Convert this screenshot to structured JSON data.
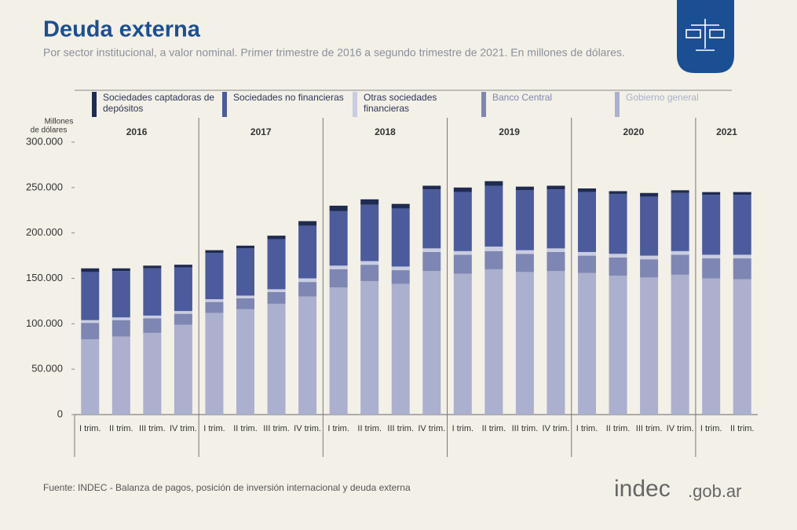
{
  "chart_data": {
    "type": "stacked_bar",
    "title": "Deuda externa",
    "subtitle": "Por sector institucional, a valor nominal. Primer trimestre de 2016 a segundo trimestre de 2021. En millones de dólares.",
    "y_label": [
      "Millones",
      "de dólares"
    ],
    "source": "Fuente: INDEC -  Balanza de pagos, posición de inversión internacional y deuda externa",
    "brand": {
      "name": "indec",
      "domain": ".gob.ar"
    },
    "groups": [
      {
        "name": "2016",
        "categories": [
          "I trim.",
          "II trim.",
          "III trim.",
          "IV trim."
        ]
      },
      {
        "name": "2017",
        "categories": [
          "I trim.",
          "II trim.",
          "III trim.",
          "IV trim."
        ]
      },
      {
        "name": "2018",
        "categories": [
          "I trim.",
          "II trim.",
          "III trim.",
          "IV trim."
        ]
      },
      {
        "name": "2019",
        "categories": [
          "I trim.",
          "II trim.",
          "III trim.",
          "IV trim."
        ]
      },
      {
        "name": "2020",
        "categories": [
          "I trim.",
          "II trim.",
          "III trim.",
          "IV trim."
        ]
      },
      {
        "name": "2021",
        "categories": [
          "I trim.",
          "II trim."
        ]
      }
    ],
    "series": [
      {
        "name": "Sociedades captadoras de depósitos",
        "color": "#1f2b50",
        "values": [
          4000,
          3000,
          3000,
          3000,
          3000,
          3000,
          4000,
          5000,
          6000,
          6000,
          5000,
          4000,
          5000,
          5000,
          4000,
          4000,
          4000,
          3000,
          4000,
          3000,
          3000,
          3000
        ]
      },
      {
        "name": "Sociedades no financieras",
        "color": "#4b5b9c",
        "values": [
          53000,
          51000,
          52000,
          48000,
          51000,
          52000,
          55000,
          58000,
          60000,
          62000,
          64000,
          65000,
          65000,
          67000,
          66000,
          65000,
          66000,
          66000,
          65000,
          64000,
          66000,
          66000
        ]
      },
      {
        "name": "Otras sociedades financieras",
        "color": "#c9cde1",
        "values": [
          3000,
          3000,
          3000,
          3000,
          3000,
          3000,
          3000,
          4000,
          4000,
          4000,
          4000,
          4000,
          4000,
          5000,
          4000,
          4000,
          4000,
          4000,
          4000,
          4000,
          4000,
          4000
        ]
      },
      {
        "name": "Banco Central",
        "color": "#7e86b3",
        "values": [
          18000,
          18000,
          16000,
          12000,
          12000,
          12000,
          13000,
          16000,
          20000,
          18000,
          15000,
          21000,
          21000,
          20000,
          20000,
          21000,
          19000,
          20000,
          20000,
          22000,
          22000,
          23000
        ]
      },
      {
        "name": "Gobierno general",
        "color": "#aab0cd",
        "values": [
          83000,
          86000,
          90000,
          99000,
          112000,
          116000,
          122000,
          130000,
          140000,
          147000,
          144000,
          158000,
          155000,
          160000,
          157000,
          158000,
          156000,
          153000,
          151000,
          154000,
          150000,
          149000
        ]
      }
    ],
    "ylim": [
      0,
      300000
    ],
    "yticks": [
      0,
      {
        "value": 50000,
        "label": "50.000"
      },
      {
        "value": 100000,
        "label": "100.000"
      },
      {
        "value": 150000,
        "label": "150.000"
      },
      {
        "value": 200000,
        "label": "200.000"
      },
      {
        "value": 250000,
        "label": "250.000"
      },
      {
        "value": 300000,
        "label": "300.000"
      }
    ]
  }
}
